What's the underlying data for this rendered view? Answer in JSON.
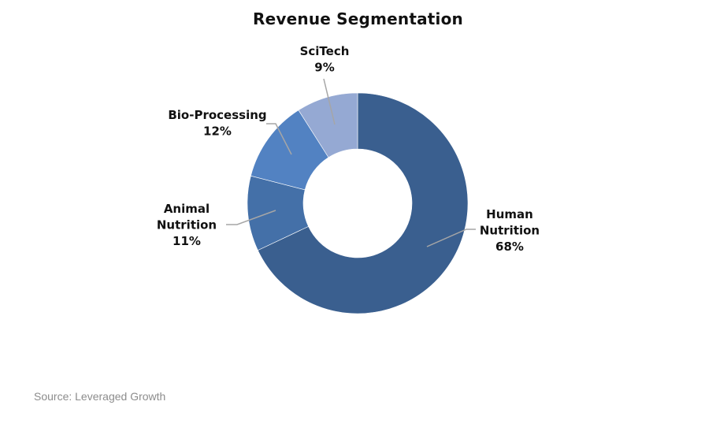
{
  "chart_data": {
    "type": "pie",
    "variant": "donut",
    "title": "Revenue Segmentation",
    "slices": [
      {
        "name": "Human Nutrition",
        "label_lines": [
          "Human",
          "Nutrition"
        ],
        "value": 68,
        "value_label": "68%",
        "color": "#3a5f8f"
      },
      {
        "name": "Animal Nutrition",
        "label_lines": [
          "Animal",
          "Nutrition"
        ],
        "value": 11,
        "value_label": "11%",
        "color": "#4470a8"
      },
      {
        "name": "Bio-Processing",
        "label_lines": [
          "Bio-Processing"
        ],
        "value": 12,
        "value_label": "12%",
        "color": "#5282c2"
      },
      {
        "name": "SciTech",
        "label_lines": [
          "SciTech"
        ],
        "value": 9,
        "value_label": "9%",
        "color": "#95a9d3"
      }
    ],
    "legend": "none",
    "labels": "outside with leader lines"
  },
  "source": "Source: Leveraged Growth"
}
